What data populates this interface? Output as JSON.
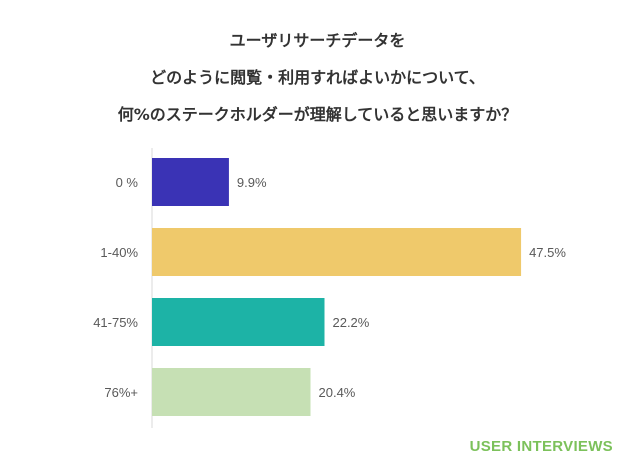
{
  "title_lines": [
    "ユーザリサーチデータを",
    "どのように閲覧・利用すればよいかについて、",
    "何%のステークホルダーが理解していると思いますか？"
  ],
  "brand": {
    "text": "USER INTERVIEWS",
    "color": "#7cc15b"
  },
  "chart_data": {
    "type": "bar",
    "orientation": "horizontal",
    "title": "ユーザリサーチデータを どのように閲覧・利用すればよいかについて、 何%のステークホルダーが理解していると思いますか？",
    "categories": [
      "0 %",
      "1-40%",
      "41-75%",
      "76%+"
    ],
    "values": [
      9.9,
      47.5,
      22.2,
      20.4
    ],
    "value_labels": [
      "9.9%",
      "47.5%",
      "22.2%",
      "20.4%"
    ],
    "colors": [
      "#3a33b5",
      "#efc96b",
      "#1db3a6",
      "#c6e0b4"
    ],
    "xlim": [
      0,
      50
    ],
    "xlabel": "",
    "ylabel": "",
    "grid": false,
    "legend": "none"
  }
}
